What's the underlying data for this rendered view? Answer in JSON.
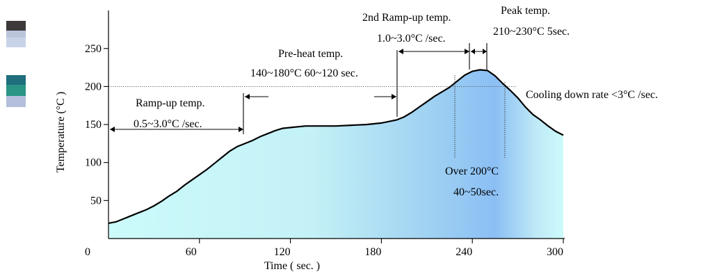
{
  "chart_data": {
    "type": "area",
    "title": "",
    "xlabel": "Time ( sec. )",
    "ylabel": "Temperature (°C )",
    "xlim": [
      0,
      300
    ],
    "ylim": [
      0,
      280
    ],
    "x_ticks": [
      0,
      60,
      120,
      180,
      240,
      300
    ],
    "y_ticks": [
      50,
      100,
      150,
      200,
      250
    ],
    "grid": false,
    "reference_line": 200,
    "series": [
      {
        "x": [
          0,
          5,
          10,
          15,
          20,
          25,
          30,
          35,
          40,
          45,
          50,
          55,
          60,
          65,
          70,
          75,
          80,
          85,
          90,
          95,
          100,
          105,
          110,
          115,
          120,
          130,
          140,
          150,
          160,
          170,
          180,
          185,
          190,
          195,
          200,
          205,
          210,
          215,
          220,
          225,
          230,
          235,
          240,
          245,
          250,
          255,
          260,
          265,
          270,
          275,
          280,
          285,
          290,
          295,
          300
        ],
        "y": [
          20,
          22,
          26,
          30,
          34,
          38,
          43,
          49,
          56,
          62,
          70,
          77,
          84,
          91,
          99,
          107,
          115,
          121,
          125,
          129,
          134,
          138,
          142,
          145,
          146,
          148,
          148,
          148,
          149,
          150,
          152,
          154,
          156,
          160,
          166,
          173,
          180,
          187,
          193,
          199,
          207,
          215,
          220,
          222,
          221,
          214,
          204,
          195,
          185,
          173,
          163,
          156,
          148,
          141,
          136
        ]
      }
    ],
    "annotations": {
      "ramp_up": {
        "title": "Ramp-up temp.",
        "value": "0.5~3.0°C /sec."
      },
      "preheat": {
        "title": "Pre-heat temp.",
        "value": "140~180°C 60~120 sec."
      },
      "ramp_up_2": {
        "title": "2nd Ramp-up temp.",
        "value": "1.0~3.0°C /sec."
      },
      "peak": {
        "title": "Peak temp.",
        "value": "210~230°C 5sec."
      },
      "cooling": "Cooling down rate <3°C /sec.",
      "over200": {
        "title": "Over 200°C",
        "value": "40~50sec."
      }
    }
  },
  "colors": {
    "legend_swatch_1": [
      "#3d393a",
      "#bcc4dc",
      "#c9d3e8"
    ],
    "legend_swatch_2": [
      "#1f6f7e",
      "#2a9585",
      "#b3bfdc"
    ],
    "fill_left": "#ccfbfb",
    "fill_mid": "#9ad6f1",
    "fill_peak": "#8bbff4",
    "fill_right": "#ccfbfb"
  }
}
